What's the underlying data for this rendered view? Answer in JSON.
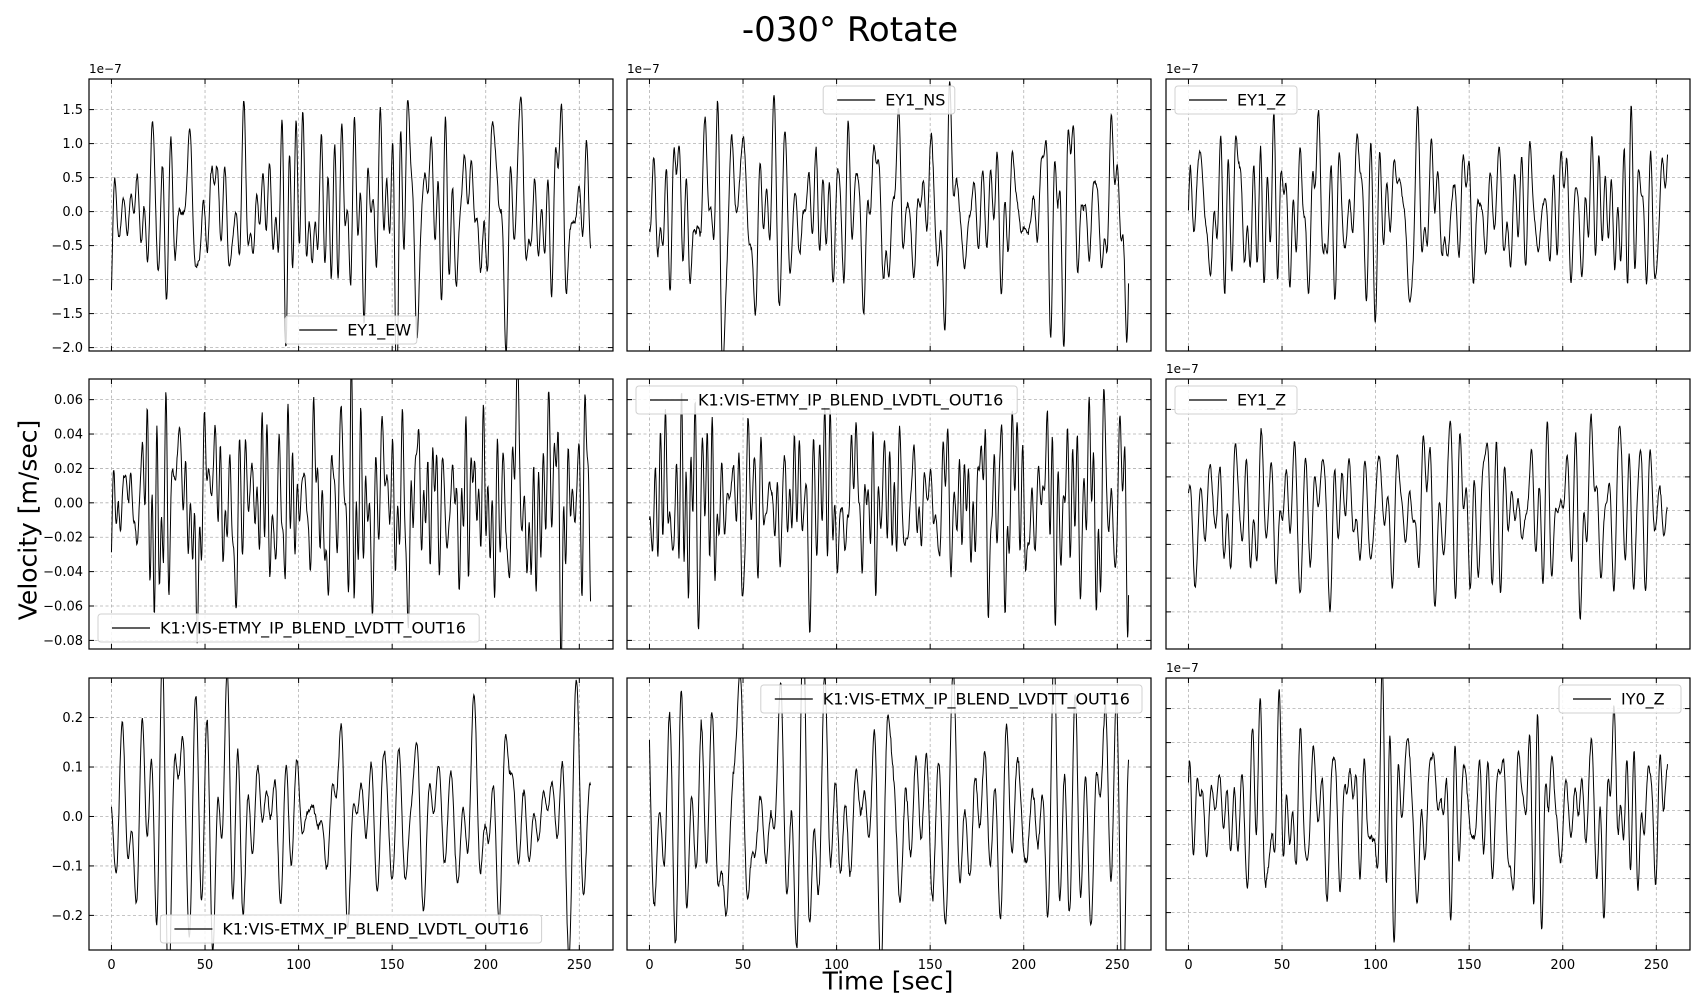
{
  "figure": {
    "title": "-030° Rotate",
    "ylabel": "Velocity [m/sec]",
    "xlabel": "Time [sec]"
  },
  "chart_data": [
    {
      "type": "line",
      "legend": "EY1_EW",
      "legend_loc": "lower-center",
      "xlim": [
        -12,
        268
      ],
      "ylim": [
        -2.05e-07,
        1.95e-07
      ],
      "xticks": [
        0,
        50,
        100,
        150,
        200,
        250
      ],
      "yticks": [
        -2e-07,
        -1.5e-07,
        -1e-07,
        -5e-08,
        0,
        5e-08,
        1e-07,
        1.5e-07
      ],
      "ytick_labels": [
        "−2.0",
        "−1.5",
        "−1.0",
        "−0.5",
        "0.0",
        "0.5",
        "1.0",
        "1.5"
      ],
      "offset_text": "1e−7",
      "show_xtick_labels": false,
      "show_ytick_labels": true,
      "duration": 256,
      "samples": 1024,
      "amplitude": 7e-08,
      "grid": true,
      "color": "#000000"
    },
    {
      "type": "line",
      "legend": "EY1_NS",
      "legend_loc": "upper-center",
      "xlim": [
        -12,
        268
      ],
      "ylim": [
        -2.05e-07,
        1.95e-07
      ],
      "xticks": [
        0,
        50,
        100,
        150,
        200,
        250
      ],
      "yticks": [
        -1.5e-07,
        -1e-07,
        -5e-08,
        0,
        5e-08,
        1e-07,
        1.5e-07
      ],
      "ytick_labels": [],
      "offset_text": "1e−7",
      "show_xtick_labels": false,
      "show_ytick_labels": false,
      "duration": 256,
      "samples": 1024,
      "amplitude": 7e-08,
      "grid": true,
      "color": "#000000"
    },
    {
      "type": "line",
      "legend": "EY1_Z",
      "legend_loc": "upper-left",
      "xlim": [
        -12,
        268
      ],
      "ylim": [
        -2.05e-07,
        1.95e-07
      ],
      "xticks": [
        0,
        50,
        100,
        150,
        200,
        250
      ],
      "yticks": [
        -1.5e-07,
        -1e-07,
        -5e-08,
        0,
        5e-08,
        1e-07,
        1.5e-07
      ],
      "ytick_labels": [],
      "offset_text": "1e−7",
      "show_xtick_labels": false,
      "show_ytick_labels": false,
      "duration": 256,
      "samples": 1024,
      "amplitude": 6e-08,
      "grid": true,
      "color": "#000000"
    },
    {
      "type": "line",
      "legend": "K1:VIS-ETMY_IP_BLEND_LVDTT_OUT16",
      "legend_loc": "lower-left",
      "xlim": [
        -12,
        268
      ],
      "ylim": [
        -0.085,
        0.072
      ],
      "xticks": [
        0,
        50,
        100,
        150,
        200,
        250
      ],
      "yticks": [
        -0.08,
        -0.06,
        -0.04,
        -0.02,
        0.0,
        0.02,
        0.04,
        0.06
      ],
      "ytick_labels": [
        "−0.08",
        "−0.06",
        "−0.04",
        "−0.02",
        "0.00",
        "0.02",
        "0.04",
        "0.06"
      ],
      "offset_text": "",
      "show_xtick_labels": false,
      "show_ytick_labels": true,
      "duration": 256,
      "samples": 1024,
      "amplitude": 0.028,
      "grid": true,
      "color": "#000000"
    },
    {
      "type": "line",
      "legend": "K1:VIS-ETMY_IP_BLEND_LVDTL_OUT16",
      "legend_loc": "upper-left",
      "xlim": [
        -12,
        268
      ],
      "ylim": [
        -0.085,
        0.072
      ],
      "xticks": [
        0,
        50,
        100,
        150,
        200,
        250
      ],
      "yticks": [
        -0.08,
        -0.06,
        -0.04,
        -0.02,
        0.0,
        0.02,
        0.04,
        0.06
      ],
      "ytick_labels": [],
      "offset_text": "",
      "show_xtick_labels": false,
      "show_ytick_labels": false,
      "duration": 256,
      "samples": 1024,
      "amplitude": 0.026,
      "grid": true,
      "color": "#000000"
    },
    {
      "type": "line",
      "legend": "EY1_Z",
      "legend_loc": "upper-left",
      "xlim": [
        -12,
        268
      ],
      "ylim": [
        -2.05e-07,
        1.95e-07
      ],
      "xticks": [
        0,
        50,
        100,
        150,
        200,
        250
      ],
      "yticks": [
        -1.5e-07,
        -1e-07,
        -5e-08,
        0,
        5e-08,
        1e-07,
        1.5e-07
      ],
      "ytick_labels": [],
      "offset_text": "1e−7",
      "show_xtick_labels": false,
      "show_ytick_labels": false,
      "duration": 256,
      "samples": 1024,
      "amplitude": 6e-08,
      "grid": true,
      "color": "#000000"
    },
    {
      "type": "line",
      "legend": "K1:VIS-ETMX_IP_BLEND_LVDTL_OUT16",
      "legend_loc": "lower-center",
      "xlim": [
        -12,
        268
      ],
      "ylim": [
        -0.27,
        0.28
      ],
      "xticks": [
        0,
        50,
        100,
        150,
        200,
        250
      ],
      "yticks": [
        -0.2,
        -0.1,
        0.0,
        0.1,
        0.2
      ],
      "ytick_labels": [
        "−0.2",
        "−0.1",
        "0.0",
        "0.1",
        "0.2"
      ],
      "offset_text": "",
      "show_xtick_labels": true,
      "show_ytick_labels": true,
      "duration": 256,
      "samples": 900,
      "amplitude": 0.11,
      "grid": true,
      "color": "#000000"
    },
    {
      "type": "line",
      "legend": "K1:VIS-ETMX_IP_BLEND_LVDTT_OUT16",
      "legend_loc": "upper-right",
      "xlim": [
        -12,
        268
      ],
      "ylim": [
        -0.27,
        0.28
      ],
      "xticks": [
        0,
        50,
        100,
        150,
        200,
        250
      ],
      "yticks": [
        -0.2,
        -0.1,
        0.0,
        0.1,
        0.2
      ],
      "ytick_labels": [],
      "offset_text": "",
      "show_xtick_labels": true,
      "show_ytick_labels": false,
      "duration": 256,
      "samples": 900,
      "amplitude": 0.13,
      "grid": true,
      "color": "#000000"
    },
    {
      "type": "line",
      "legend": "IY0_Z",
      "legend_loc": "upper-right",
      "xlim": [
        -12,
        268
      ],
      "ylim": [
        -2.05e-07,
        1.95e-07
      ],
      "xticks": [
        0,
        50,
        100,
        150,
        200,
        250
      ],
      "yticks": [
        -1.5e-07,
        -1e-07,
        -5e-08,
        0,
        5e-08,
        1e-07,
        1.5e-07
      ],
      "ytick_labels": [],
      "offset_text": "1e−7",
      "show_xtick_labels": true,
      "show_ytick_labels": false,
      "duration": 256,
      "samples": 1024,
      "amplitude": 6.5e-08,
      "grid": true,
      "color": "#000000"
    }
  ]
}
